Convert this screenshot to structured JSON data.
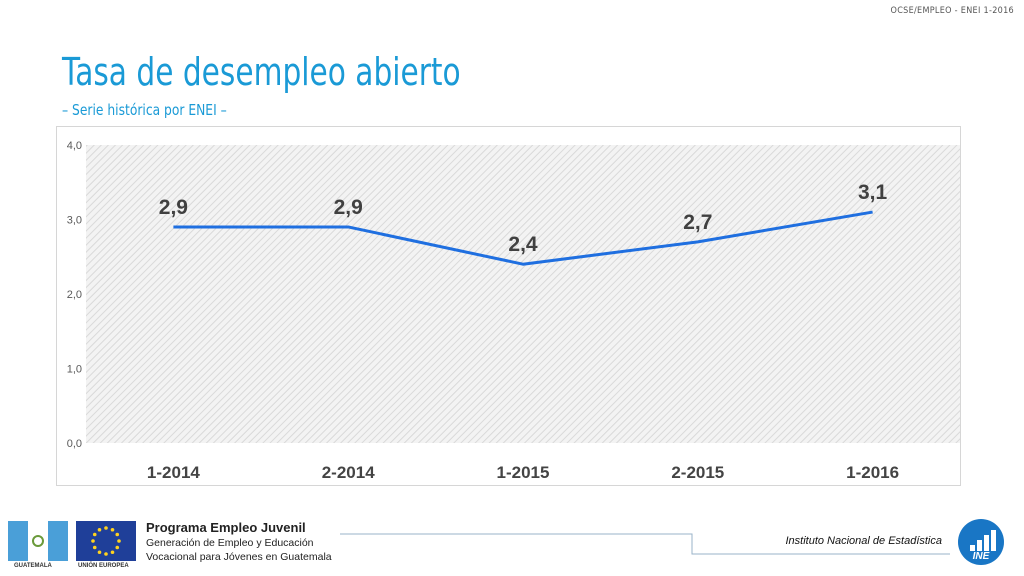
{
  "header": {
    "reference": "OCSE/EMPLEO - ENEI 1-2016",
    "title": "Tasa de desempleo abierto",
    "subtitle": "– Serie histórica por ENEI –"
  },
  "chart_data": {
    "type": "line",
    "categories": [
      "1-2014",
      "2-2014",
      "1-2015",
      "2-2015",
      "1-2016"
    ],
    "series": [
      {
        "values": [
          2.9,
          2.9,
          2.4,
          2.7,
          3.1
        ],
        "color": "#1f6fe0"
      }
    ],
    "data_labels": [
      "2,9",
      "2,9",
      "2,4",
      "2,7",
      "3,1"
    ],
    "ylim": [
      0,
      4
    ],
    "yticks": [
      "0,0",
      "1,0",
      "2,0",
      "3,0",
      "4,0"
    ],
    "ytick_values": [
      0,
      1,
      2,
      3,
      4
    ],
    "grid": false,
    "plot_background": "hatched-gray"
  },
  "footer": {
    "flag_left_label": "GUATEMALA",
    "flag_right_label": "UNIÓN EUROPEA",
    "program_title": "Programa Empleo Juvenil",
    "program_line1": "Generación de Empleo y Educación",
    "program_line2": "Vocacional para Jóvenes en Guatemala",
    "institute": "Instituto Nacional de Estadística",
    "logo_text": "INE"
  },
  "colors": {
    "accent": "#1a9ad6",
    "line": "#1f6fe0",
    "logo": "#1976c5"
  }
}
